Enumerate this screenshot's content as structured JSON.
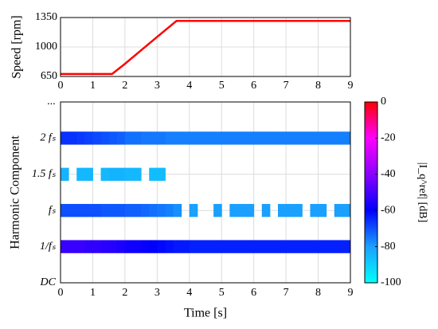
{
  "chart_data": [
    {
      "type": "line",
      "ylabel": "Speed [rpm]",
      "x": [
        0,
        0.5,
        1,
        1.6,
        2,
        2.5,
        3,
        3.6,
        4,
        5,
        6,
        7,
        8,
        9
      ],
      "values": [
        680,
        680,
        680,
        680,
        800,
        960,
        1120,
        1310,
        1310,
        1310,
        1310,
        1310,
        1310,
        1310
      ],
      "color": "#ff0000",
      "xlim": [
        0,
        9
      ],
      "xticks": [
        0,
        1,
        2,
        3,
        4,
        5,
        6,
        7,
        8,
        9
      ],
      "ylim": [
        650,
        1350
      ],
      "yticks": [
        650,
        1000,
        1350
      ],
      "grid": true
    },
    {
      "type": "heatmap",
      "xlabel": "Time [s]",
      "ylabel": "Harmonic Component",
      "clabel": "|I_q^ref| [dB]",
      "xlim": [
        0,
        9
      ],
      "xticks": [
        0,
        1,
        2,
        3,
        4,
        5,
        6,
        7,
        8,
        9
      ],
      "ylim": [
        0,
        5
      ],
      "yticks": [
        {
          "value": 0,
          "label": "DC"
        },
        {
          "value": 1,
          "label": "1/fₛ"
        },
        {
          "value": 2,
          "label": "fₛ"
        },
        {
          "value": 3,
          "label": "1.5 fₛ"
        },
        {
          "value": 4,
          "label": "2 fₛ"
        },
        {
          "value": 5,
          "label": "..."
        }
      ],
      "grid": true,
      "clim": [
        -100,
        0
      ],
      "cticks": [
        0,
        -20,
        -40,
        -60,
        -80,
        -100
      ],
      "colormap": [
        "#00ffff",
        "#1aa0ff",
        "#0000ff",
        "#8a00ff",
        "#ff00ff",
        "#ff0000"
      ],
      "x": [
        0.125,
        0.375,
        0.625,
        0.875,
        1.125,
        1.375,
        1.625,
        1.875,
        2.125,
        2.375,
        2.625,
        2.875,
        3.125,
        3.375,
        3.625,
        3.875,
        4.125,
        4.375,
        4.625,
        4.875,
        5.125,
        5.375,
        5.625,
        5.875,
        6.125,
        6.375,
        6.625,
        6.875,
        7.125,
        7.375,
        7.625,
        7.875,
        8.125,
        8.375,
        8.625,
        8.875
      ],
      "series": [
        {
          "y": 4,
          "values": [
            -66,
            -66,
            -67,
            -68,
            -69,
            -70,
            -71,
            -72,
            -74,
            -74,
            -75,
            -75,
            -75,
            -76,
            -76,
            -76,
            -76,
            -76,
            -76,
            -76,
            -76,
            -76,
            -76,
            -76,
            -76,
            -76,
            -76,
            -76,
            -76,
            -76,
            -76,
            -76,
            -76,
            -76,
            -76,
            -76
          ]
        },
        {
          "y": 3,
          "values": [
            -84,
            null,
            -85,
            -85,
            null,
            -85,
            -84,
            -84,
            -85,
            -85,
            null,
            -86,
            -86,
            null,
            null,
            null,
            null,
            null,
            null,
            null,
            null,
            null,
            null,
            null,
            null,
            null,
            null,
            null,
            null,
            null,
            null,
            null,
            null,
            null,
            null,
            null
          ]
        },
        {
          "y": 2,
          "values": [
            -70,
            -70,
            -70,
            -70,
            -70,
            -71,
            -71,
            -71,
            -72,
            -72,
            -73,
            -74,
            -75,
            -76,
            -78,
            null,
            -80,
            null,
            null,
            -80,
            null,
            -80,
            -80,
            -80,
            null,
            -80,
            null,
            -80,
            -80,
            -80,
            null,
            -80,
            -80,
            null,
            -80,
            -80
          ]
        },
        {
          "y": 1,
          "values": [
            -52,
            -52,
            -52,
            -53,
            -53,
            -54,
            -55,
            -56,
            -58,
            -58,
            -59,
            -60,
            -61,
            -62,
            -63,
            -63,
            -64,
            -64,
            -64,
            -64,
            -64,
            -64,
            -64,
            -64,
            -64,
            -64,
            -64,
            -64,
            -64,
            -64,
            -64,
            -64,
            -64,
            -64,
            -64,
            -64
          ]
        }
      ]
    }
  ]
}
